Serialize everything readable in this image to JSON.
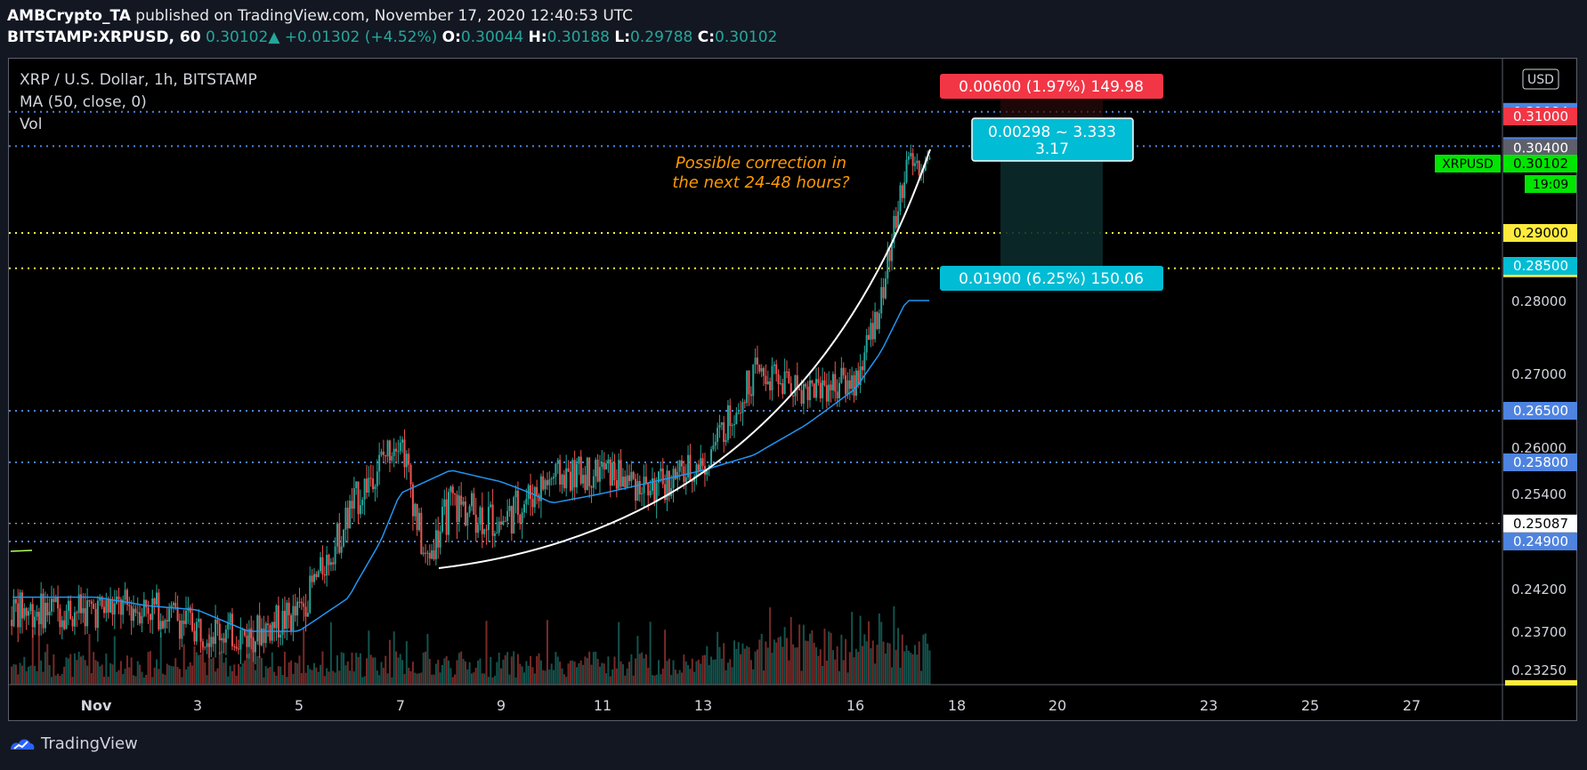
{
  "header": {
    "publisher": "AMBCrypto_TA",
    "published_text": "published on TradingView.com, November 17, 2020 12:40:53 UTC",
    "symbol": "BITSTAMP:XRPUSD, 60",
    "last": "0.30102",
    "up_arrow": "▲",
    "change": "+0.01302 (+4.52%)",
    "o_label": "O:",
    "o": "0.30044",
    "h_label": "H:",
    "h": "0.30188",
    "l_label": "L:",
    "l": "0.29788",
    "c_label": "C:",
    "c": "0.30102"
  },
  "legend": {
    "title": "XRP / U.S. Dollar, 1h, BITSTAMP",
    "ma": "MA (50, close, 0)",
    "vol": "Vol"
  },
  "annotation": {
    "line1": "Possible correction in",
    "line2": "the next 24-48 hours?"
  },
  "position_tool": {
    "target_label": "0.00600 (1.97%) 149.98",
    "stop_label": "0.01900 (6.25%) 150.06",
    "ratio_line1": "0.00298 ~ 3.333",
    "ratio_line2": "3.17"
  },
  "footer": {
    "brand": "TradingView"
  },
  "chart_data": {
    "type": "line",
    "currency": "USD",
    "x_ticks": [
      "Nov",
      "3",
      "5",
      "7",
      "9",
      "11",
      "13",
      "16",
      "18",
      "20",
      "23",
      "25",
      "27"
    ],
    "y_tick_labels": [
      "0.28000",
      "0.27000",
      "0.26000",
      "0.25400",
      "0.24200",
      "0.23700",
      "0.23250"
    ],
    "horizontal_levels": [
      {
        "value": "0.31084",
        "style": "blue-dotted"
      },
      {
        "value": "0.30435",
        "style": "blue-dotted"
      },
      {
        "value": "0.29000",
        "style": "yellow-dotted"
      },
      {
        "value": "0.28465",
        "style": "yellow-dotted"
      },
      {
        "value": "0.26500",
        "style": "blue-dotted"
      },
      {
        "value": "0.25800",
        "style": "blue-dotted"
      },
      {
        "value": "0.25087",
        "style": "white-dotted"
      },
      {
        "value": "0.24900",
        "style": "blue-dotted"
      }
    ],
    "price_badges": [
      {
        "label": "0.31000",
        "color": "#f23645"
      },
      {
        "label": "0.30400",
        "color": "#5d606b"
      },
      {
        "label": "0.28500",
        "color": "#00bcd4"
      }
    ],
    "last_price": {
      "symbol": "XRPUSD",
      "value": "0.30102",
      "countdown": "19:09",
      "color": "#00e600"
    },
    "series": [
      {
        "name": "XRP / U.S. Dollar",
        "x": [
          "Nov 1",
          "Nov 2",
          "Nov 3",
          "Nov 4",
          "Nov 5",
          "Nov 6",
          "Nov 7",
          "Nov 7.5",
          "Nov 8",
          "Nov 9",
          "Nov 10",
          "Nov 11",
          "Nov 12",
          "Nov 13",
          "Nov 14",
          "Nov 15",
          "Nov 16",
          "Nov 16.5",
          "Nov 17"
        ],
        "values": [
          0.2395,
          0.24,
          0.2375,
          0.2365,
          0.239,
          0.252,
          0.262,
          0.246,
          0.253,
          0.251,
          0.256,
          0.257,
          0.2545,
          0.258,
          0.27,
          0.268,
          0.269,
          0.28,
          0.301
        ]
      },
      {
        "name": "MA (50, close, 0)",
        "x": [
          "Nov 1",
          "Nov 2",
          "Nov 3",
          "Nov 4",
          "Nov 5",
          "Nov 6",
          "Nov 7",
          "Nov 8",
          "Nov 9",
          "Nov 10",
          "Nov 11",
          "Nov 12",
          "Nov 13",
          "Nov 14",
          "Nov 15",
          "Nov 16",
          "Nov 16.5",
          "Nov 17"
        ],
        "values": [
          0.241,
          0.24,
          0.2395,
          0.237,
          0.237,
          0.241,
          0.254,
          0.257,
          0.2555,
          0.253,
          0.254,
          0.2555,
          0.257,
          0.259,
          0.263,
          0.268,
          0.273,
          0.28
        ]
      }
    ],
    "colors": {
      "up": "#26a69a",
      "down": "#ef5350",
      "ma": "#2196f3",
      "accent_blue": "#4e83e0",
      "yellow": "#ffeb3b"
    }
  }
}
